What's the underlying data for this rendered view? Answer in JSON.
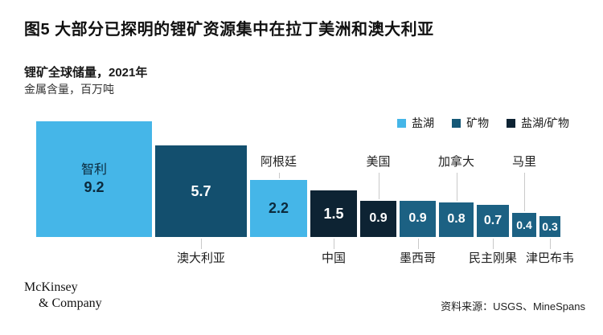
{
  "header": {
    "figure_title": "图5 大部分已探明的锂矿资源集中在拉丁美洲和澳大利亚",
    "subtitle": "锂矿全球储量，2021年",
    "unit_note": "金属含量，百万吨"
  },
  "legend": {
    "items": [
      {
        "label": "盐湖",
        "color": "#45B6E8"
      },
      {
        "label": "矿物",
        "color": "#155877"
      },
      {
        "label": "盐湖/矿物",
        "color": "#0D2333"
      }
    ]
  },
  "chart_data": {
    "type": "bar",
    "title": "锂矿全球储量，2021年",
    "unit": "金属含量，百万吨",
    "note": "square bars, area proportional to value, common baseline, no axes/grid",
    "categories": [
      "智利",
      "澳大利亚",
      "阿根廷",
      "中国",
      "美国",
      "墨西哥",
      "加拿大",
      "民主刚果",
      "马里",
      "津巴布韦"
    ],
    "values": [
      9.2,
      5.7,
      2.2,
      1.5,
      0.9,
      0.9,
      0.8,
      0.7,
      0.4,
      0.3
    ],
    "bars": [
      {
        "country": "智利",
        "value": 9.2,
        "category": "盐湖",
        "color": "#45B6E8",
        "text_color": "#0B2A3D",
        "label_position": "inside"
      },
      {
        "country": "澳大利亚",
        "value": 5.7,
        "category": "矿物",
        "color": "#134F6E",
        "text_color": "#ffffff",
        "label_position": "below"
      },
      {
        "country": "阿根廷",
        "value": 2.2,
        "category": "盐湖",
        "color": "#45B6E8",
        "text_color": "#0B2A3D",
        "label_position": "above"
      },
      {
        "country": "中国",
        "value": 1.5,
        "category": "盐湖/矿物",
        "color": "#0D2333",
        "text_color": "#ffffff",
        "label_position": "below"
      },
      {
        "country": "美国",
        "value": 0.9,
        "category": "盐湖/矿物",
        "color": "#0D2333",
        "text_color": "#ffffff",
        "label_position": "above"
      },
      {
        "country": "墨西哥",
        "value": 0.9,
        "category": "矿物",
        "color": "#1C6183",
        "text_color": "#ffffff",
        "label_position": "below"
      },
      {
        "country": "加拿大",
        "value": 0.8,
        "category": "矿物",
        "color": "#1C6183",
        "text_color": "#ffffff",
        "label_position": "above"
      },
      {
        "country": "民主刚果",
        "value": 0.7,
        "category": "矿物",
        "color": "#1C6183",
        "text_color": "#ffffff",
        "label_position": "below"
      },
      {
        "country": "马里",
        "value": 0.4,
        "category": "矿物",
        "color": "#1C6183",
        "text_color": "#ffffff",
        "label_position": "above"
      },
      {
        "country": "津巴布韦",
        "value": 0.3,
        "category": "矿物",
        "color": "#1C6183",
        "text_color": "#ffffff",
        "label_position": "below"
      }
    ]
  },
  "footer": {
    "logo_line1": "McKinsey",
    "logo_line2": "& Company",
    "source": "资料来源：USGS、MineSpans"
  }
}
